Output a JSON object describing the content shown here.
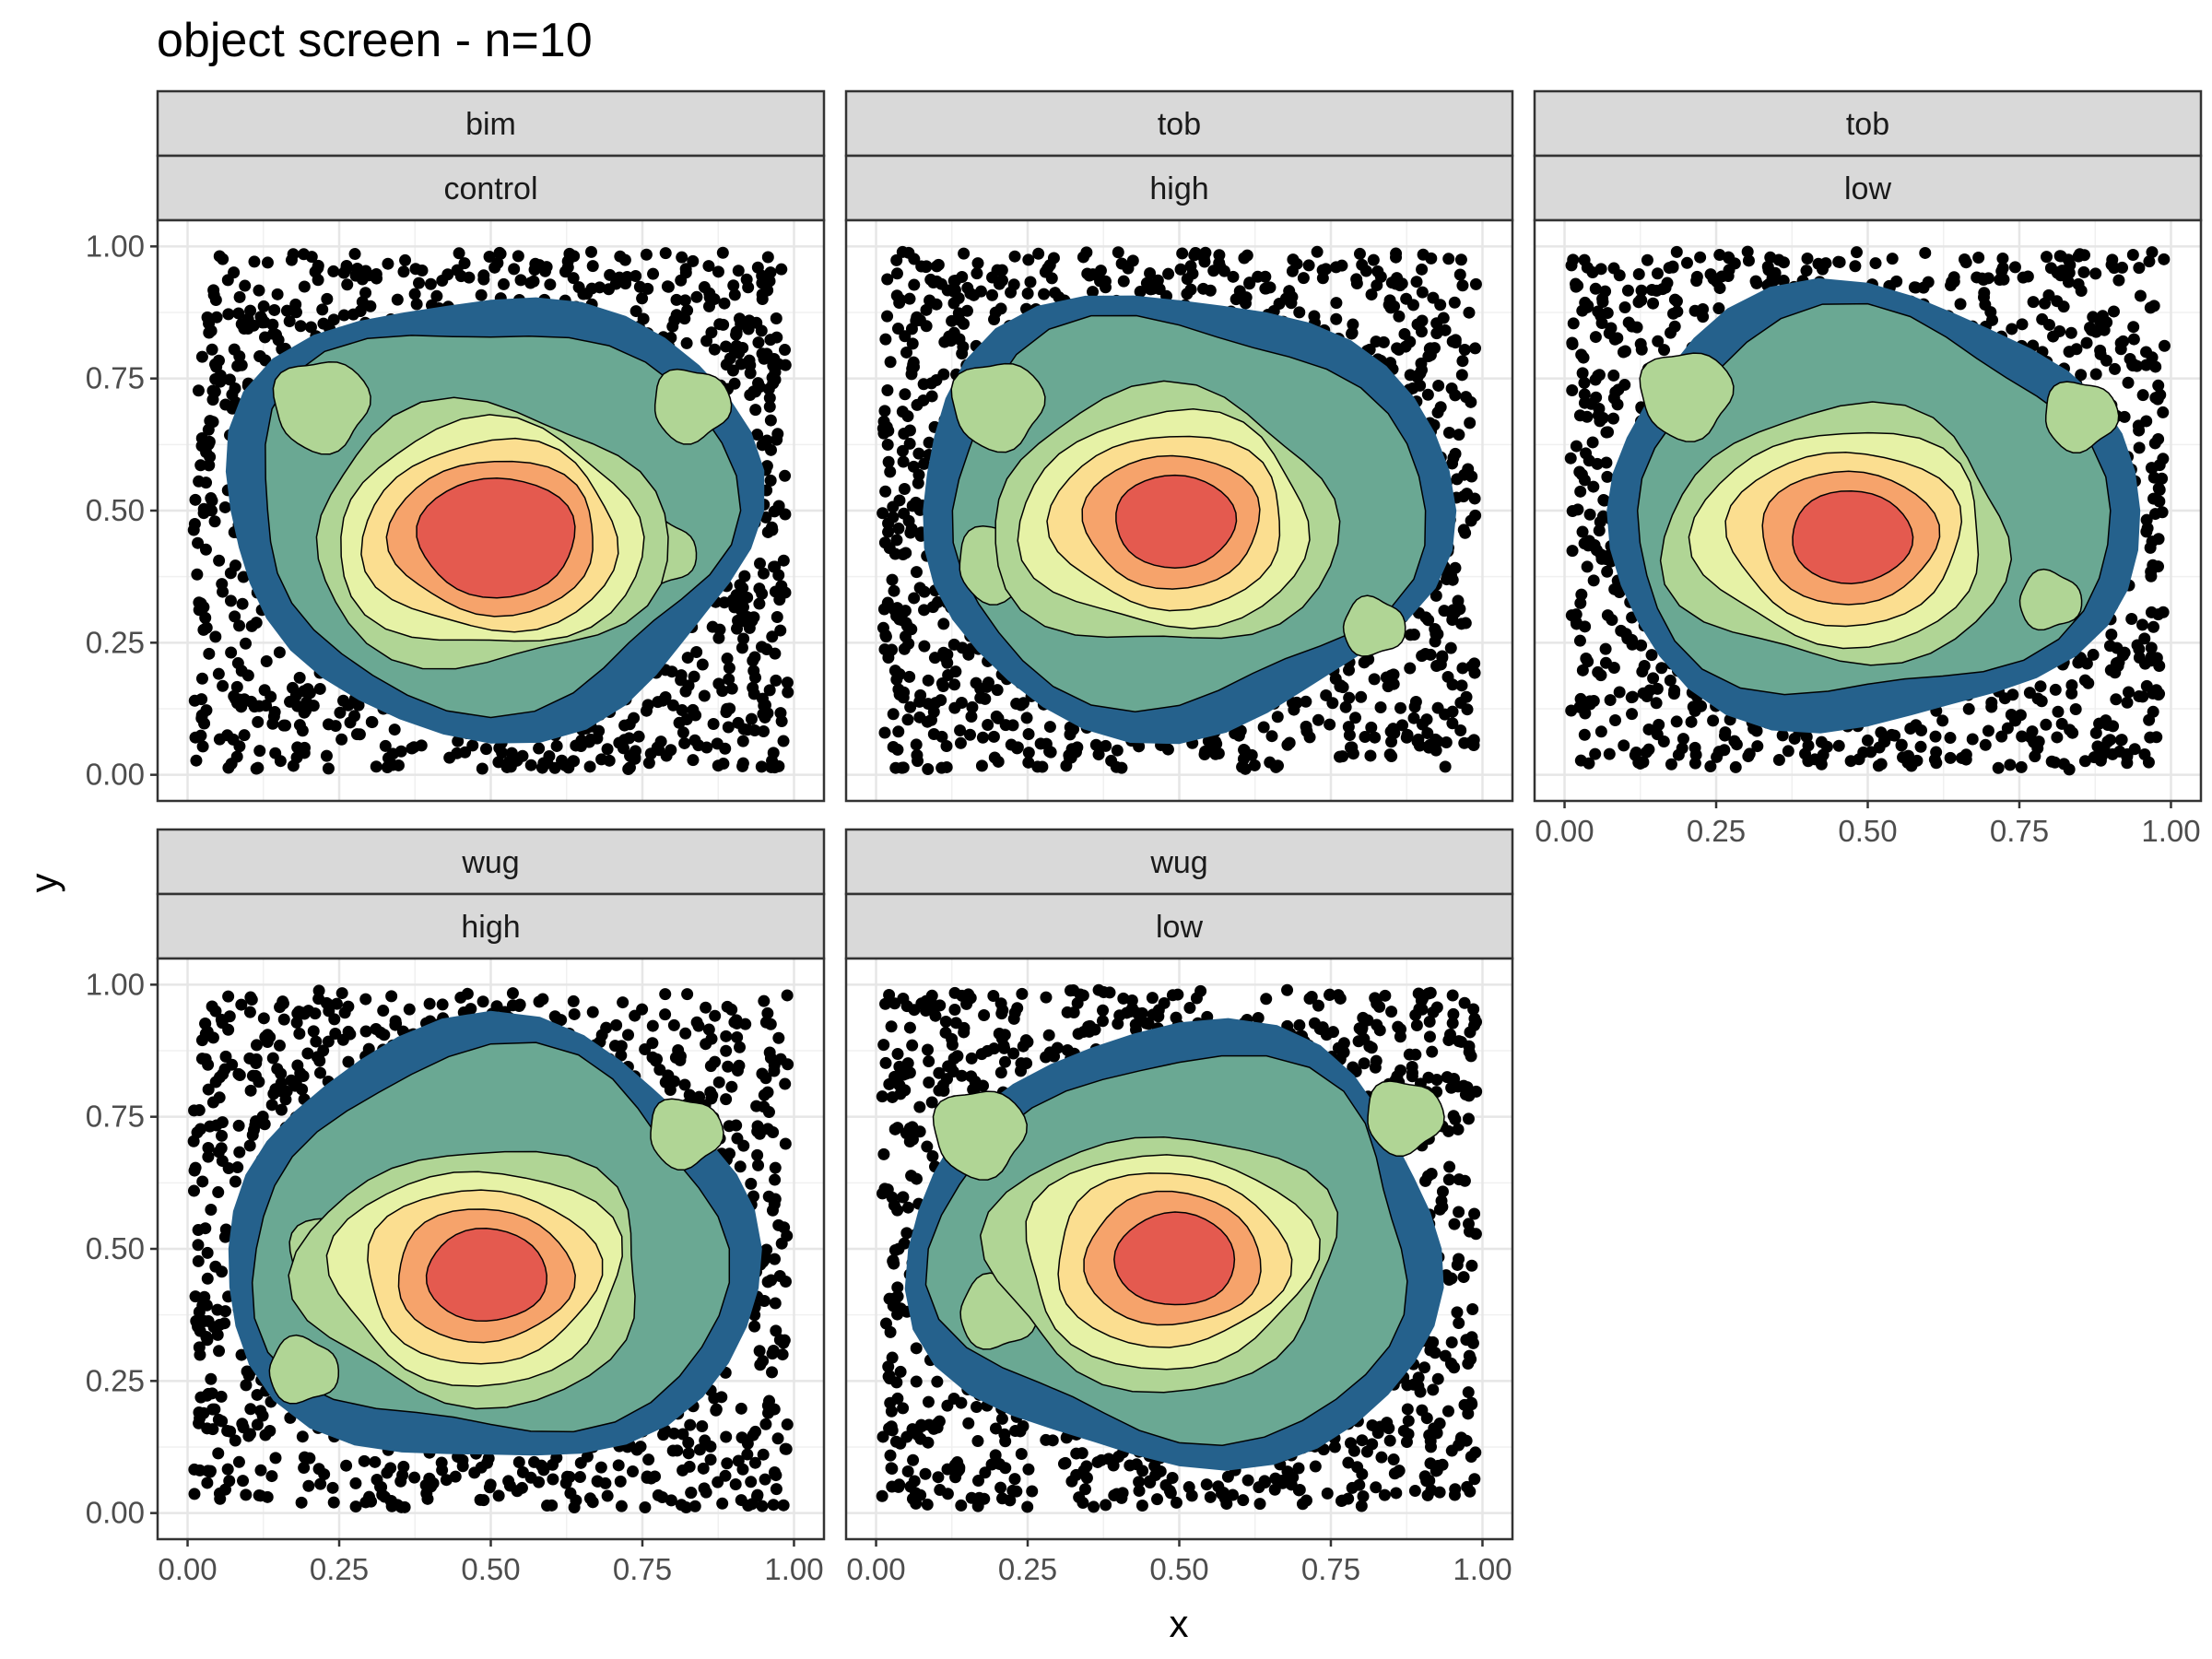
{
  "chart_data": {
    "type": "density2d_faceted",
    "title": "object screen - n=10",
    "xlabel": "x",
    "ylabel": "y",
    "xlim": [
      0,
      1
    ],
    "ylim": [
      0,
      1
    ],
    "x_ticks": [
      "0.00",
      "0.25",
      "0.50",
      "0.75",
      "1.00"
    ],
    "y_ticks": [
      "0.00",
      "0.25",
      "0.50",
      "0.75",
      "1.00"
    ],
    "grid": true,
    "fill_palette": [
      "#25618c",
      "#6aa893",
      "#b0d595",
      "#e6f2a6",
      "#fbde90",
      "#f6a36b",
      "#e45a4f"
    ],
    "point_color": "#000000",
    "panels": [
      {
        "strip_top": "bim",
        "strip_bottom": "control",
        "peak": [
          0.52,
          0.45
        ],
        "bumps": [
          [
            0.22,
            0.7,
            0.8
          ],
          [
            0.83,
            0.7,
            0.55
          ],
          [
            0.78,
            0.42,
            0.45
          ]
        ],
        "levels": 7
      },
      {
        "strip_top": "tob",
        "strip_bottom": "high",
        "peak": [
          0.5,
          0.48
        ],
        "bumps": [
          [
            0.2,
            0.7,
            0.75
          ],
          [
            0.2,
            0.4,
            0.6
          ],
          [
            0.82,
            0.28,
            0.35
          ]
        ],
        "levels": 6
      },
      {
        "strip_top": "tob",
        "strip_bottom": "low",
        "peak": [
          0.48,
          0.45
        ],
        "bumps": [
          [
            0.2,
            0.72,
            0.75
          ],
          [
            0.85,
            0.68,
            0.5
          ],
          [
            0.8,
            0.33,
            0.35
          ]
        ],
        "levels": 6
      },
      {
        "strip_top": "wug",
        "strip_bottom": "high",
        "peak": [
          0.5,
          0.45
        ],
        "bumps": [
          [
            0.25,
            0.48,
            0.85
          ],
          [
            0.82,
            0.72,
            0.5
          ],
          [
            0.19,
            0.27,
            0.45
          ]
        ],
        "levels": 6
      },
      {
        "strip_top": "wug",
        "strip_bottom": "low",
        "peak": [
          0.5,
          0.48
        ],
        "bumps": [
          [
            0.17,
            0.72,
            0.75
          ],
          [
            0.87,
            0.75,
            0.55
          ],
          [
            0.2,
            0.38,
            0.55
          ]
        ],
        "levels": 6
      }
    ]
  }
}
